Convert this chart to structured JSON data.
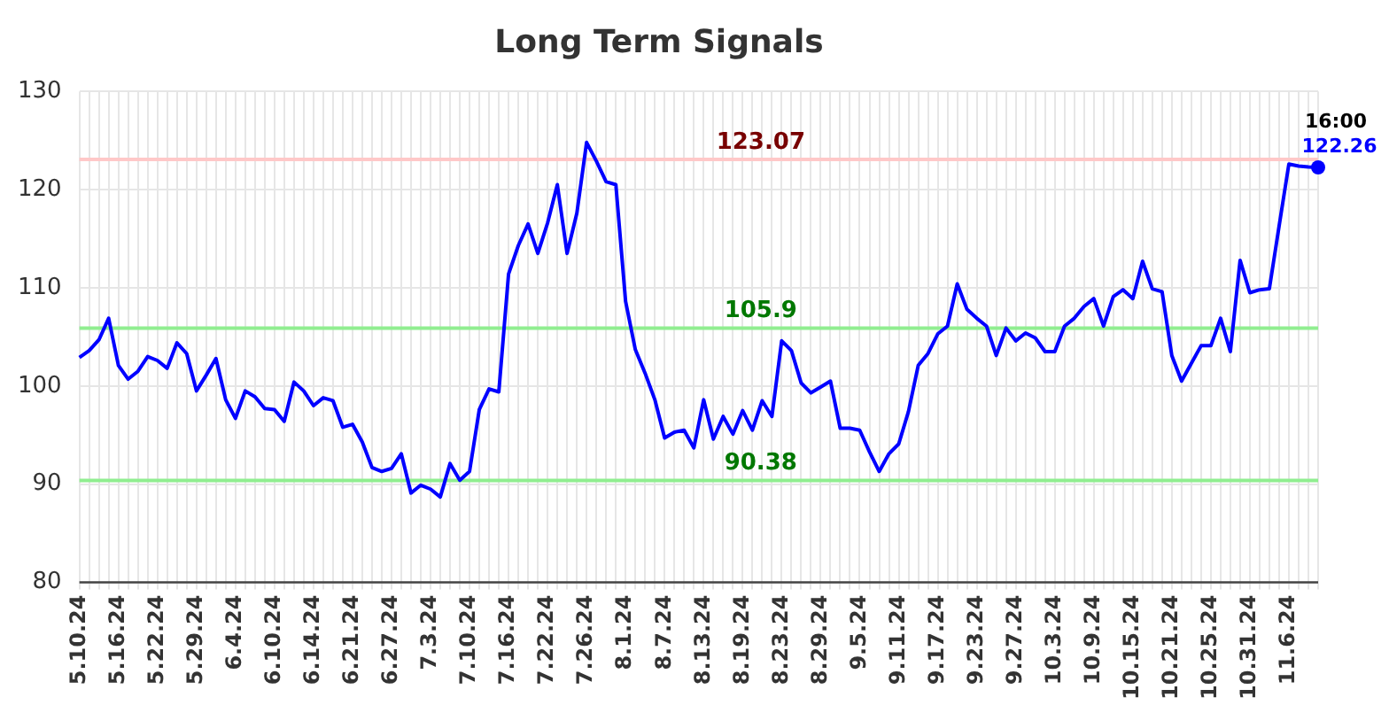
{
  "chart_data": {
    "type": "line",
    "title": "Long Term Signals",
    "categories": [
      "5.10.24",
      null,
      null,
      null,
      "5.16.24",
      null,
      null,
      null,
      "5.22.24",
      null,
      null,
      null,
      "5.29.24",
      null,
      null,
      null,
      "6.4.24",
      null,
      null,
      null,
      "6.10.24",
      null,
      null,
      null,
      "6.14.24",
      null,
      null,
      null,
      "6.21.24",
      null,
      null,
      null,
      "6.27.24",
      null,
      null,
      null,
      "7.3.24",
      null,
      null,
      null,
      "7.10.24",
      null,
      null,
      null,
      "7.16.24",
      null,
      null,
      null,
      "7.22.24",
      null,
      null,
      null,
      "7.26.24",
      null,
      null,
      null,
      "8.1.24",
      null,
      null,
      null,
      "8.7.24",
      null,
      null,
      null,
      "8.13.24",
      null,
      null,
      null,
      "8.19.24",
      null,
      null,
      null,
      "8.23.24",
      null,
      null,
      null,
      "8.29.24",
      null,
      null,
      null,
      "9.5.24",
      null,
      null,
      null,
      "9.11.24",
      null,
      null,
      null,
      "9.17.24",
      null,
      null,
      null,
      "9.23.24",
      null,
      null,
      null,
      "9.27.24",
      null,
      null,
      null,
      "10.3.24",
      null,
      null,
      null,
      "10.9.24",
      null,
      null,
      null,
      "10.15.24",
      null,
      null,
      null,
      "10.21.24",
      null,
      null,
      null,
      "10.25.24",
      null,
      null,
      null,
      "10.31.24",
      null,
      null,
      null,
      "11.6.24",
      null,
      null,
      null
    ],
    "series": [
      {
        "color": "#0000ff",
        "values": [
          102.9,
          103.6,
          104.7,
          106.9,
          102.1,
          100.7,
          101.5,
          103.0,
          102.6,
          101.8,
          104.4,
          103.3,
          99.5,
          101.1,
          102.8,
          98.6,
          96.7,
          99.5,
          98.9,
          97.7,
          97.6,
          96.4,
          100.4,
          99.5,
          98.0,
          98.8,
          98.5,
          95.8,
          96.1,
          94.3,
          91.7,
          91.3,
          91.6,
          93.1,
          89.1,
          89.9,
          89.5,
          88.7,
          92.1,
          90.4,
          91.3,
          97.6,
          99.7,
          99.4,
          111.4,
          114.3,
          116.5,
          113.5,
          116.6,
          120.5,
          113.5,
          117.6,
          124.8,
          122.9,
          120.8,
          120.5,
          108.6,
          103.7,
          101.3,
          98.6,
          94.7,
          95.3,
          95.5,
          93.7,
          98.6,
          94.6,
          96.9,
          95.1,
          97.5,
          95.5,
          98.5,
          96.9,
          104.6,
          103.6,
          100.3,
          99.3,
          99.9,
          100.5,
          95.7,
          95.7,
          95.5,
          93.3,
          91.3,
          93.1,
          94.1,
          97.4,
          102.1,
          103.3,
          105.3,
          106.1,
          110.4,
          107.8,
          106.9,
          106.1,
          103.1,
          105.9,
          104.6,
          105.4,
          104.9,
          103.5,
          103.5,
          106.1,
          106.9,
          108.1,
          108.9,
          106.1,
          109.1,
          109.8,
          108.9,
          112.7,
          109.9,
          109.6,
          103.1,
          100.5,
          102.3,
          104.1,
          104.1,
          106.9,
          103.5,
          112.8,
          109.5,
          109.8,
          109.9,
          116.3,
          122.6,
          122.4,
          122.3,
          122.26
        ],
        "value_labels": [
          null,
          null,
          null,
          null,
          null,
          null,
          null,
          null,
          null,
          null,
          null,
          null,
          null,
          null,
          null,
          null,
          null,
          null,
          null,
          null,
          null,
          null,
          null,
          null,
          null,
          null,
          null,
          null,
          null,
          null,
          null,
          null,
          null,
          null,
          null,
          null,
          null,
          null,
          null,
          null,
          null,
          null,
          null,
          null,
          null,
          null,
          null,
          null,
          null,
          null,
          null,
          null,
          null,
          null,
          null,
          null,
          null,
          null,
          null,
          null,
          null,
          null,
          null,
          null,
          null,
          null,
          null,
          null,
          null,
          null,
          null,
          null,
          null,
          null,
          null,
          null,
          null,
          null,
          null,
          null,
          null,
          null,
          null,
          null,
          null,
          null,
          null,
          null,
          null,
          null,
          null,
          null,
          null,
          null,
          null,
          null,
          null,
          null,
          null,
          null,
          null,
          null,
          null,
          null,
          null,
          null,
          null,
          null,
          null,
          null,
          null,
          null,
          null,
          null,
          null,
          null,
          null,
          null,
          null,
          null,
          null,
          null,
          null,
          null,
          null,
          null,
          null,
          "122.26"
        ]
      }
    ],
    "ylim": [
      80,
      130
    ],
    "yticks": [
      80,
      90,
      100,
      110,
      120,
      130
    ],
    "grid": true,
    "legend": false,
    "marker": "none",
    "line_style": "solid",
    "ref_lines": [
      {
        "axis": "y",
        "value": 123.07,
        "label": "123.07",
        "color": "#ffc8c8"
      },
      {
        "axis": "y",
        "value": 105.9,
        "label": "105.9",
        "color": "#90ee90"
      },
      {
        "axis": "y",
        "value": 90.38,
        "label": "90.38",
        "color": "#90ee90"
      }
    ],
    "annotations": [
      "16:00"
    ]
  }
}
